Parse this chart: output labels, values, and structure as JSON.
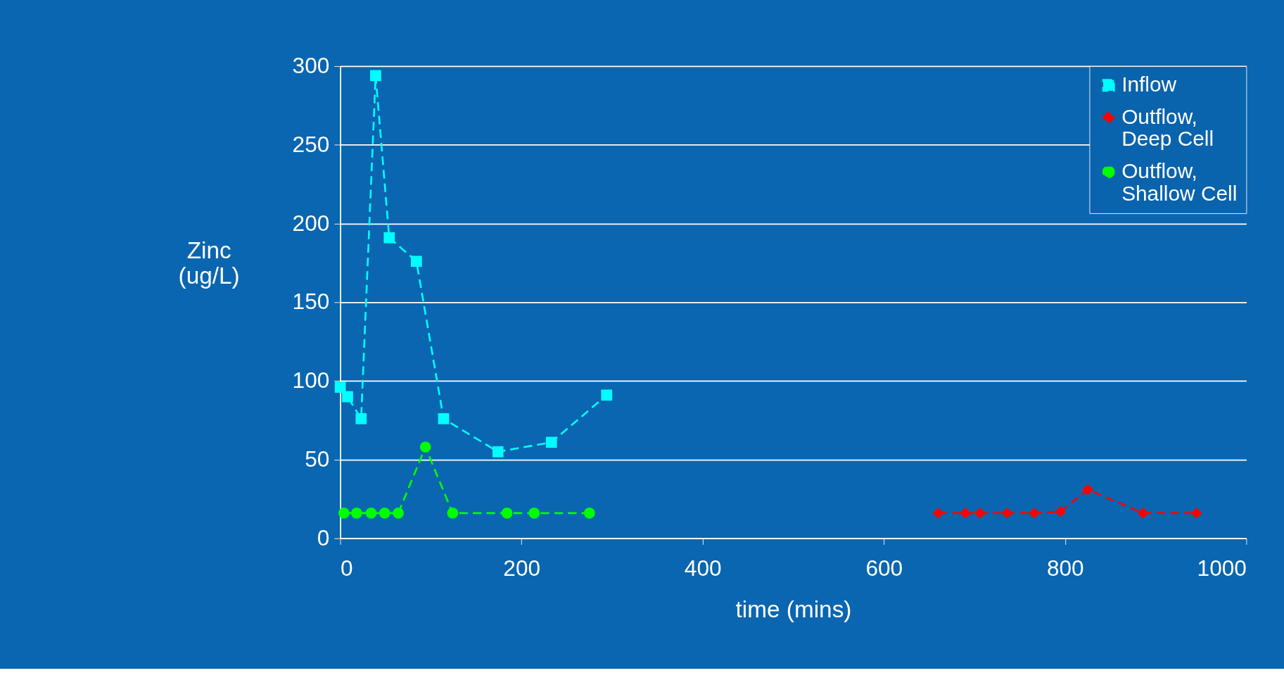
{
  "chart_data": {
    "type": "line",
    "xlabel": "time (mins)",
    "ylabel": "Zinc\n(ug/L)",
    "xlim": [
      0,
      1000
    ],
    "xticks": [
      0,
      200,
      400,
      600,
      800,
      1000
    ],
    "ylim": [
      0,
      300
    ],
    "yticks": [
      0,
      50,
      100,
      150,
      200,
      250,
      300
    ],
    "grid": "y",
    "legend": "top right",
    "line_style": "dashed",
    "series": [
      {
        "name": "Inflow",
        "color": "#00ffff",
        "marker": "square",
        "x": [
          0,
          8,
          23,
          39,
          54,
          84,
          114,
          174,
          233,
          294
        ],
        "values": [
          96,
          90,
          76,
          294,
          191,
          176,
          76,
          55,
          61,
          91
        ]
      },
      {
        "name": "Outflow,\nDeep Cell",
        "color": "#ff0000",
        "marker": "diamond",
        "x": [
          660,
          690,
          706,
          736,
          766,
          795,
          825,
          886,
          945
        ],
        "values": [
          16,
          16,
          16,
          16,
          16,
          17,
          31,
          16,
          16
        ]
      },
      {
        "name": "Outflow,\nShallow Cell",
        "color": "#00ff00",
        "marker": "circle",
        "x": [
          4,
          18,
          34,
          49,
          64,
          94,
          124,
          184,
          214,
          275
        ],
        "values": [
          16,
          16,
          16,
          16,
          16,
          58,
          16,
          16,
          16,
          16
        ]
      }
    ]
  }
}
